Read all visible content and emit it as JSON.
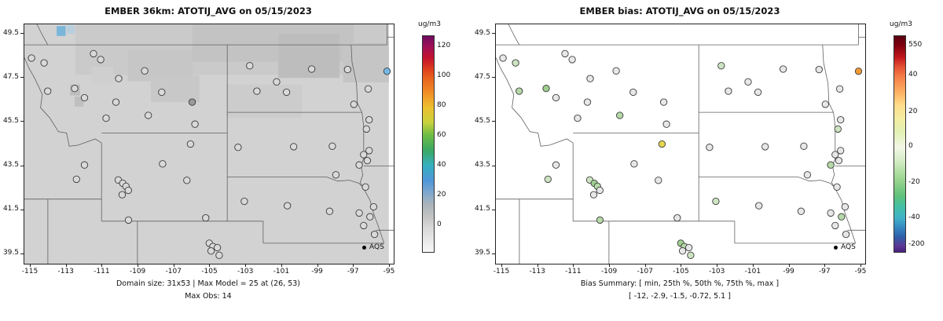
{
  "chart_data": {
    "type": "map-scatter",
    "description": "Two-panel air quality model evaluation maps over the northern US Rockies / Great Plains",
    "extent": {
      "lon_min": -115.35,
      "lon_max": -94.78,
      "lat_min": 39.07,
      "lat_max": 49.93
    },
    "x_ticks": [
      -115,
      -113,
      -111,
      -109,
      -107,
      -105,
      -103,
      -101,
      -99,
      -97,
      -95
    ],
    "y_ticks": [
      39.5,
      41.5,
      43.5,
      45.5,
      47.5,
      49.5
    ],
    "xlabel": "",
    "ylabel": "",
    "panels": [
      {
        "id": "model",
        "title": "EMBER 36km: ATOTIJ_AVG on 05/15/2023",
        "legend_label": "AQS",
        "captions": [
          "Domain size: 31x53 | Max Model = 25 at (26, 53)",
          "Max Obs: 14"
        ],
        "domain_size": "31x53",
        "max_model": "25 at (26, 53)",
        "max_obs": 14,
        "site_fill_index": 2,
        "colorbar": {
          "label": "ug/m3",
          "ticks": [
            {
              "v": "120",
              "p": 4.9
            },
            {
              "v": "100",
              "p": 18.7
            },
            {
              "v": "80",
              "p": 32.6
            },
            {
              "v": "60",
              "p": 46.4
            },
            {
              "v": "40",
              "p": 60.3
            },
            {
              "v": "20",
              "p": 74.1
            },
            {
              "v": "0",
              "p": 87.9
            }
          ],
          "stops": [
            [
              0,
              "#6e0b5e"
            ],
            [
              5,
              "#a00f56"
            ],
            [
              10,
              "#c41230"
            ],
            [
              15,
              "#dc3b1e"
            ],
            [
              19,
              "#e85f1e"
            ],
            [
              26,
              "#f08c26"
            ],
            [
              33,
              "#eec02f"
            ],
            [
              40,
              "#c8d23b"
            ],
            [
              46,
              "#6cbc45"
            ],
            [
              53,
              "#3aa864"
            ],
            [
              60,
              "#35b0c0"
            ],
            [
              67,
              "#4f96d8"
            ],
            [
              72,
              "#7aa6cf"
            ],
            [
              78,
              "#aab4ba"
            ],
            [
              84,
              "#c4c4c4"
            ],
            [
              88,
              "#d6d6d6"
            ],
            [
              100,
              "#f7f7f7"
            ]
          ]
        },
        "field_patches": [
          {
            "x": -115.35,
            "y": 49.93,
            "w": 20.3,
            "h": 10.86,
            "c": "#d2d2d2"
          },
          {
            "x": -112.5,
            "y": 49.93,
            "w": 17.45,
            "h": 2.3,
            "c": "#cacaca"
          },
          {
            "x": -106.0,
            "y": 49.93,
            "w": 9.0,
            "h": 1.7,
            "c": "#c3c3c3"
          },
          {
            "x": -101.2,
            "y": 49.5,
            "w": 3.4,
            "h": 2.0,
            "c": "#bdbdbd"
          },
          {
            "x": -109.6,
            "y": 48.75,
            "w": 3.6,
            "h": 1.4,
            "c": "#c6c6c6"
          },
          {
            "x": -111.6,
            "y": 48.0,
            "w": 1.2,
            "h": 0.8,
            "c": "#cfcfcf"
          },
          {
            "x": -108.3,
            "y": 47.6,
            "w": 2.7,
            "h": 1.2,
            "c": "#c8c8c8"
          },
          {
            "x": -104.1,
            "y": 47.2,
            "w": 4.2,
            "h": 1.5,
            "c": "#cccccc"
          },
          {
            "x": -97.6,
            "y": 49.1,
            "w": 2.55,
            "h": 1.8,
            "c": "#c5c5c5"
          },
          {
            "x": -113.55,
            "y": 49.85,
            "w": 0.5,
            "h": 0.45,
            "c": "#79b6d9"
          },
          {
            "x": -113.0,
            "y": 49.9,
            "w": 0.45,
            "h": 0.4,
            "c": "#b9cfdd"
          },
          {
            "x": -112.8,
            "y": 47.2,
            "w": 0.55,
            "h": 0.5,
            "c": "#bdbdbd"
          },
          {
            "x": -112.55,
            "y": 46.65,
            "w": 0.5,
            "h": 0.45,
            "c": "#bfbfbf"
          }
        ]
      },
      {
        "id": "bias",
        "title": "EMBER bias: ATOTIJ_AVG on 05/15/2023",
        "legend_label": "AQS",
        "captions": [
          "Bias Summary: [ min, 25th %, 50th %, 75th %, max ]",
          "[ -12,  -2.9,  -1.5,  -0.72,  5.1 ]"
        ],
        "bias_summary": {
          "min": -12,
          "p25": -2.9,
          "p50": -1.5,
          "p75": -0.72,
          "max": 5.1
        },
        "site_fill_index": 3,
        "colorbar": {
          "label": "ug/m3",
          "ticks": [
            {
              "v": "550",
              "p": 4.4
            },
            {
              "v": "40",
              "p": 18.5
            },
            {
              "v": "20",
              "p": 35.3
            },
            {
              "v": "0",
              "p": 51.6
            },
            {
              "v": "-20",
              "p": 68.0
            },
            {
              "v": "-40",
              "p": 84.4
            },
            {
              "v": "-200",
              "p": 97.0
            }
          ],
          "stops": [
            [
              0,
              "#5a0010"
            ],
            [
              4.4,
              "#7f000f"
            ],
            [
              10,
              "#c2181c"
            ],
            [
              14,
              "#e24e32"
            ],
            [
              18.5,
              "#f47b46"
            ],
            [
              26,
              "#fdb163"
            ],
            [
              32,
              "#fedc8a"
            ],
            [
              38,
              "#f4eda2"
            ],
            [
              44,
              "#e2f0b2"
            ],
            [
              51.6,
              "#f2f7e6"
            ],
            [
              58,
              "#d4ecc4"
            ],
            [
              63,
              "#b0dfa2"
            ],
            [
              68,
              "#8fd08a"
            ],
            [
              74,
              "#5fc27a"
            ],
            [
              79,
              "#45bfa5"
            ],
            [
              84.4,
              "#41b0c8"
            ],
            [
              89,
              "#3584c0"
            ],
            [
              93,
              "#2c5fa8"
            ],
            [
              97,
              "#5b3a96"
            ],
            [
              100,
              "#47207f"
            ]
          ]
        },
        "field_patches": []
      }
    ],
    "sites_format": [
      "lon",
      "lat",
      "model_fill",
      "bias_fill"
    ],
    "sites": [
      [
        -114.95,
        48.4,
        "#d9d9d9",
        "#e7e7e7"
      ],
      [
        -114.25,
        48.18,
        "#d9d9d9",
        "#cde4c2"
      ],
      [
        -111.5,
        48.6,
        "#d9d9d9",
        "#e7e7e7"
      ],
      [
        -111.1,
        48.33,
        "#d9d9d9",
        "#e7e7e7"
      ],
      [
        -108.65,
        47.82,
        "#d9d9d9",
        "#e7e7e7"
      ],
      [
        -110.1,
        47.47,
        "#d9d9d9",
        "#e7e7e7"
      ],
      [
        -112.55,
        47.02,
        "#d9d9d9",
        "#9fce8f"
      ],
      [
        -114.05,
        46.9,
        "#d9d9d9",
        "#b5d9a8"
      ],
      [
        -112.0,
        46.6,
        "#d9d9d9",
        "#e7e7e7"
      ],
      [
        -110.25,
        46.4,
        "#d9d9d9",
        "#e7e7e7"
      ],
      [
        -107.7,
        46.85,
        "#d9d9d9",
        "#e7e7e7"
      ],
      [
        -106.0,
        46.4,
        "#9a9a9a",
        "#e7e7e7"
      ],
      [
        -108.45,
        45.8,
        "#d9d9d9",
        "#b5d9a8"
      ],
      [
        -110.8,
        45.67,
        "#d9d9d9",
        "#e7e7e7"
      ],
      [
        -105.85,
        45.4,
        "#d9d9d9",
        "#e7e7e7"
      ],
      [
        -102.8,
        48.05,
        "#d9d9d9",
        "#cde4c2"
      ],
      [
        -101.3,
        47.32,
        "#d9d9d9",
        "#e7e7e7"
      ],
      [
        -99.35,
        47.9,
        "#d9d9d9",
        "#e7e7e7"
      ],
      [
        -97.35,
        47.88,
        "#d9d9d9",
        "#e7e7e7"
      ],
      [
        -95.15,
        47.8,
        "#74b9e8",
        "#f09a38"
      ],
      [
        -96.2,
        47.0,
        "#d9d9d9",
        "#e7e7e7"
      ],
      [
        -100.75,
        46.85,
        "#d9d9d9",
        "#e7e7e7"
      ],
      [
        -102.4,
        46.9,
        "#d9d9d9",
        "#e7e7e7"
      ],
      [
        -97.0,
        46.3,
        "#d9d9d9",
        "#e7e7e7"
      ],
      [
        -96.15,
        45.6,
        "#d9d9d9",
        "#e7e7e7"
      ],
      [
        -96.3,
        45.18,
        "#d9d9d9",
        "#cde4c2"
      ],
      [
        -103.45,
        44.35,
        "#d9d9d9",
        "#e7e7e7"
      ],
      [
        -100.35,
        44.38,
        "#d9d9d9",
        "#e7e7e7"
      ],
      [
        -98.2,
        44.4,
        "#d9d9d9",
        "#e7e7e7"
      ],
      [
        -96.45,
        44.02,
        "#d9d9d9",
        "#e7e7e7"
      ],
      [
        -96.7,
        43.55,
        "#d9d9d9",
        "#b5d9a8"
      ],
      [
        -98.0,
        43.1,
        "#d9d9d9",
        "#e7e7e7"
      ],
      [
        -106.1,
        44.5,
        "#d9d9d9",
        "#e6d44e"
      ],
      [
        -107.65,
        43.6,
        "#d9d9d9",
        "#e7e7e7"
      ],
      [
        -106.3,
        42.85,
        "#d9d9d9",
        "#e7e7e7"
      ],
      [
        -110.12,
        42.87,
        "#d9d9d9",
        "#cde4c2"
      ],
      [
        -109.87,
        42.72,
        "#d9d9d9",
        "#9fce8f"
      ],
      [
        -109.69,
        42.58,
        "#d9d9d9",
        "#b5d9a8"
      ],
      [
        -109.56,
        42.4,
        "#d9d9d9",
        "#e7e7e7"
      ],
      [
        -109.9,
        42.2,
        "#d9d9d9",
        "#e7e7e7"
      ],
      [
        -109.55,
        41.05,
        "#d9d9d9",
        "#b5d9a8"
      ],
      [
        -112.0,
        43.55,
        "#d9d9d9",
        "#e7e7e7"
      ],
      [
        -112.45,
        42.9,
        "#d9d9d9",
        "#cde4c2"
      ],
      [
        -103.1,
        41.9,
        "#d9d9d9",
        "#cde4c2"
      ],
      [
        -105.25,
        41.15,
        "#d9d9d9",
        "#e7e7e7"
      ],
      [
        -100.7,
        41.7,
        "#d9d9d9",
        "#e7e7e7"
      ],
      [
        -98.35,
        41.45,
        "#d9d9d9",
        "#e7e7e7"
      ],
      [
        -96.7,
        41.37,
        "#d9d9d9",
        "#e7e7e7"
      ],
      [
        -96.1,
        41.2,
        "#d9d9d9",
        "#b5d9a8"
      ],
      [
        -95.9,
        41.65,
        "#d9d9d9",
        "#e7e7e7"
      ],
      [
        -96.45,
        40.8,
        "#d9d9d9",
        "#e7e7e7"
      ],
      [
        -95.85,
        40.4,
        "#d9d9d9",
        "#e7e7e7"
      ],
      [
        -96.15,
        44.2,
        "#d9d9d9",
        "#e7e7e7"
      ],
      [
        -96.25,
        43.75,
        "#d9d9d9",
        "#e7e7e7"
      ],
      [
        -96.35,
        42.55,
        "#d9d9d9",
        "#e7e7e7"
      ],
      [
        -105.05,
        40.0,
        "#d9d9d9",
        "#9fce8f"
      ],
      [
        -104.85,
        39.85,
        "#d9d9d9",
        "#b5d9a8"
      ],
      [
        -104.95,
        39.65,
        "#d9d9d9",
        "#e7e7e7"
      ],
      [
        -104.6,
        39.8,
        "#d9d9d9",
        "#e7e7e7"
      ],
      [
        -104.5,
        39.45,
        "#d9d9d9",
        "#cde4c2"
      ]
    ],
    "borders": [
      [
        [
          -115.35,
          49
        ],
        [
          -95.15,
          49
        ]
      ],
      [
        [
          -95.15,
          49.93
        ],
        [
          -95.15,
          49
        ]
      ],
      [
        [
          -95.15,
          49.35
        ],
        [
          -94.78,
          49.35
        ]
      ],
      [
        [
          -114.05,
          49.0
        ],
        [
          -114.35,
          49.45
        ],
        [
          -114.65,
          49.93
        ]
      ],
      [
        [
          -115.35,
          48.42
        ],
        [
          -115.1,
          47.95
        ],
        [
          -114.75,
          47.45
        ],
        [
          -114.35,
          46.75
        ],
        [
          -114.45,
          46.15
        ],
        [
          -113.95,
          45.7
        ],
        [
          -113.45,
          45.06
        ],
        [
          -113.0,
          45.0
        ],
        [
          -112.85,
          44.4
        ],
        [
          -112.35,
          44.45
        ],
        [
          -111.4,
          44.73
        ],
        [
          -111.05,
          44.55
        ]
      ],
      [
        [
          -111.05,
          44.55
        ],
        [
          -111.05,
          41.0
        ]
      ],
      [
        [
          -111.05,
          45.0
        ],
        [
          -104.05,
          45.0
        ]
      ],
      [
        [
          -104.05,
          49.0
        ],
        [
          -104.05,
          41.0
        ]
      ],
      [
        [
          -111.05,
          41.0
        ],
        [
          -102.05,
          41.0
        ]
      ],
      [
        [
          -102.05,
          41.0
        ],
        [
          -102.05,
          40.0
        ]
      ],
      [
        [
          -102.05,
          40.0
        ],
        [
          -95.32,
          40.0
        ]
      ],
      [
        [
          -95.32,
          40.0
        ],
        [
          -95.65,
          40.8
        ],
        [
          -95.9,
          41.35
        ],
        [
          -96.1,
          41.95
        ],
        [
          -96.5,
          42.55
        ],
        [
          -96.65,
          42.75
        ],
        [
          -96.5,
          43.1
        ],
        [
          -96.6,
          43.5
        ]
      ],
      [
        [
          -96.6,
          43.5
        ],
        [
          -96.45,
          43.85
        ],
        [
          -96.45,
          45.3
        ],
        [
          -96.55,
          45.94
        ]
      ],
      [
        [
          -96.55,
          45.94
        ],
        [
          -96.8,
          46.35
        ],
        [
          -96.85,
          47.25
        ],
        [
          -97.1,
          48.2
        ],
        [
          -97.15,
          49.0
        ]
      ],
      [
        [
          -104.05,
          45.94
        ],
        [
          -96.55,
          45.94
        ]
      ],
      [
        [
          -104.05,
          43.0
        ],
        [
          -98.5,
          43.0
        ],
        [
          -97.9,
          42.82
        ],
        [
          -97.25,
          42.86
        ],
        [
          -96.72,
          42.72
        ],
        [
          -96.5,
          42.55
        ]
      ],
      [
        [
          -96.45,
          43.5
        ],
        [
          -94.78,
          43.5
        ]
      ],
      [
        [
          -115.35,
          42.0
        ],
        [
          -111.05,
          42.0
        ]
      ],
      [
        [
          -114.04,
          42.0
        ],
        [
          -114.04,
          39.07
        ]
      ],
      [
        [
          -109.05,
          41.0
        ],
        [
          -109.05,
          39.07
        ]
      ],
      [
        [
          -95.77,
          40.59
        ],
        [
          -94.78,
          40.59
        ]
      ]
    ]
  }
}
